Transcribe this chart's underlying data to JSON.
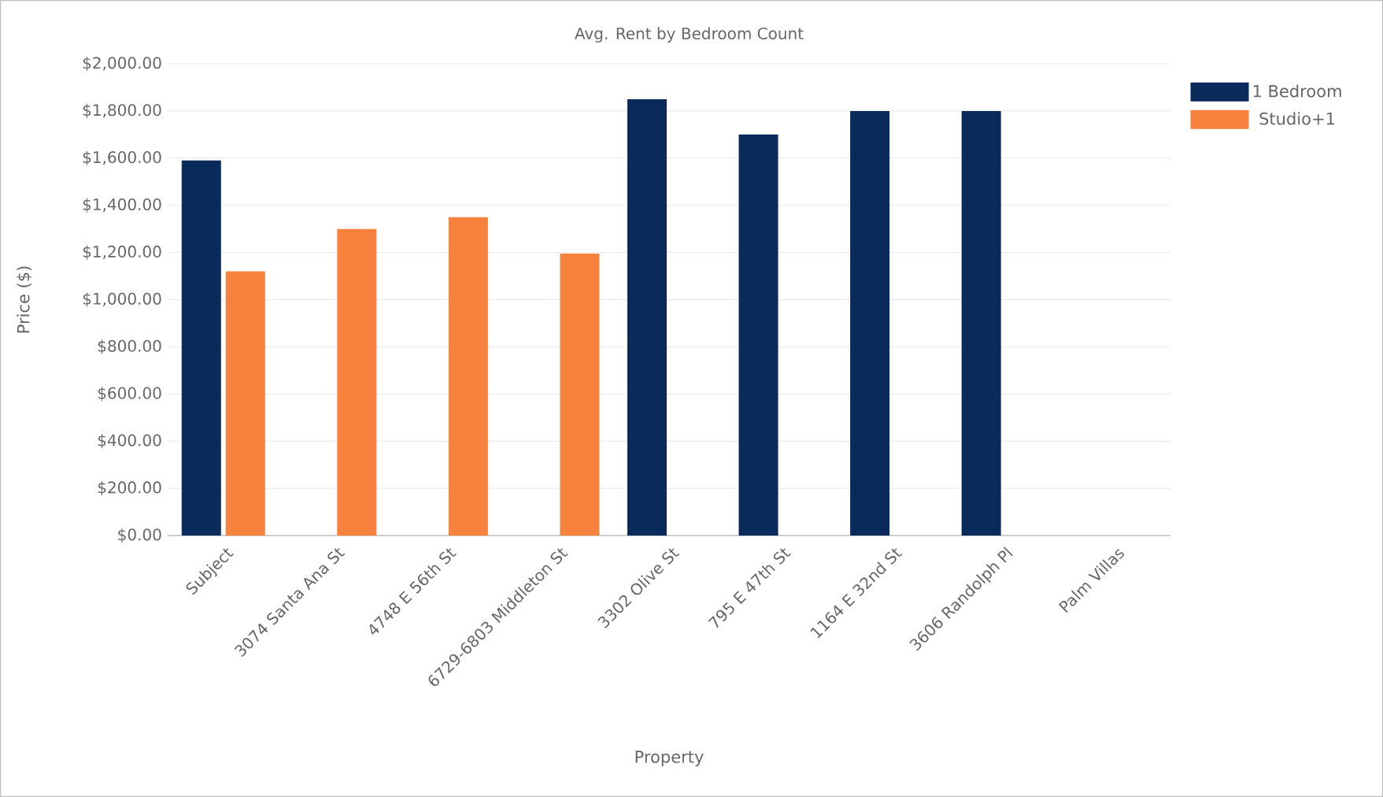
{
  "chart_data": {
    "type": "bar",
    "title": "Avg. Rent by Bedroom Count",
    "xlabel": "Property",
    "ylabel": "Price ($)",
    "categories": [
      "Subject",
      "3074 Santa Ana St",
      "4748 E 56th St",
      "6729-6803 Middleton St",
      "3302 Olive St",
      "795 E 47th St",
      "1164 E 32nd St",
      "3606 Randolph Pl",
      "Palm Villas"
    ],
    "series": [
      {
        "name": "1 Bedroom",
        "color": "#0b2a5c",
        "values": [
          1590,
          null,
          null,
          null,
          1850,
          1700,
          1800,
          1800,
          null
        ]
      },
      {
        "name": "Studio+1",
        "color": "#f7823d",
        "values": [
          1120,
          1300,
          1350,
          1195,
          null,
          null,
          null,
          null,
          null
        ]
      }
    ],
    "ylim": [
      0,
      2000
    ],
    "yticks": [
      {
        "value": 0,
        "label": "$0.00"
      },
      {
        "value": 200,
        "label": "$200.00"
      },
      {
        "value": 400,
        "label": "$400.00"
      },
      {
        "value": 600,
        "label": "$600.00"
      },
      {
        "value": 800,
        "label": "$800.00"
      },
      {
        "value": 1000,
        "label": "$1,000.00"
      },
      {
        "value": 1200,
        "label": "$1,200.00"
      },
      {
        "value": 1400,
        "label": "$1,400.00"
      },
      {
        "value": 1600,
        "label": "$1,600.00"
      },
      {
        "value": 1800,
        "label": "$1,800.00"
      },
      {
        "value": 2000,
        "label": "$2,000.00"
      }
    ],
    "grid": "y",
    "legend": "top right"
  }
}
